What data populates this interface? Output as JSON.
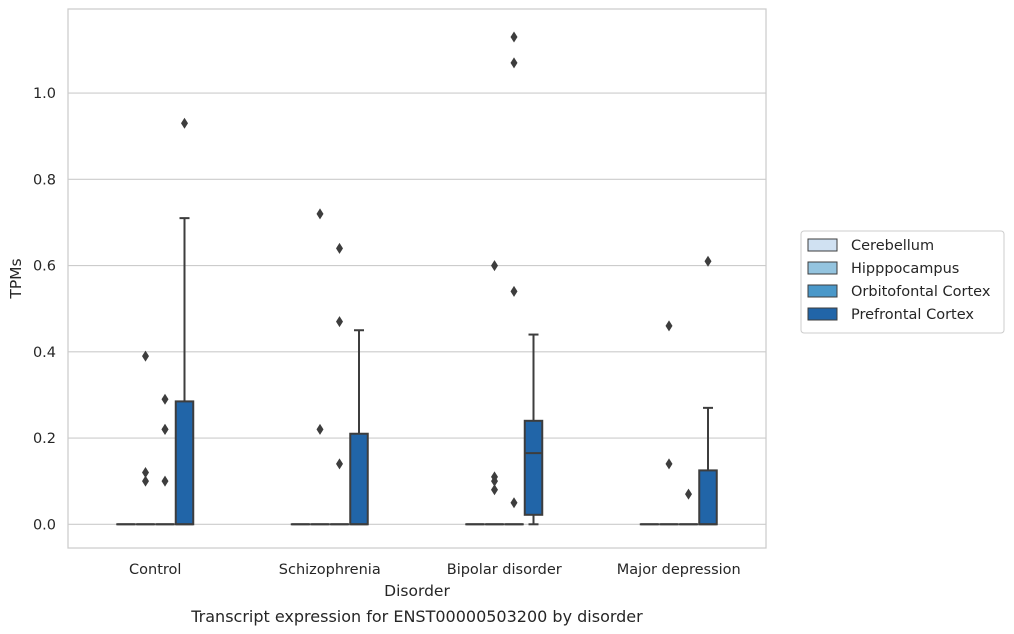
{
  "caption": "Transcript expression for ENST00000503200 by disorder",
  "chart_data": {
    "type": "box",
    "xlabel": "Disorder",
    "ylabel": "TPMs",
    "categories": [
      "Control",
      "Schizophrenia",
      "Bipolar disorder",
      "Major depression"
    ],
    "ylim": [
      -0.055,
      1.195
    ],
    "yticks": [
      0.0,
      0.2,
      0.4,
      0.6,
      0.8,
      1.0
    ],
    "ytick_labels": [
      "0.0",
      "0.2",
      "0.4",
      "0.6",
      "0.8",
      "1.0"
    ],
    "grid": "horizontal",
    "legend_position": "center-right",
    "series": [
      {
        "name": "Cerebellum",
        "color": "#d0e1f2",
        "boxes": [
          {
            "q1": 0,
            "median": 0,
            "q3": 0,
            "whisker_low": 0,
            "whisker_high": 0,
            "outliers": []
          },
          {
            "q1": 0,
            "median": 0,
            "q3": 0,
            "whisker_low": 0,
            "whisker_high": 0,
            "outliers": []
          },
          {
            "q1": 0,
            "median": 0,
            "q3": 0,
            "whisker_low": 0,
            "whisker_high": 0,
            "outliers": []
          },
          {
            "q1": 0,
            "median": 0,
            "q3": 0,
            "whisker_low": 0,
            "whisker_high": 0,
            "outliers": []
          }
        ]
      },
      {
        "name": "Hipppocampus",
        "color": "#94c4df",
        "boxes": [
          {
            "q1": 0,
            "median": 0,
            "q3": 0,
            "whisker_low": 0,
            "whisker_high": 0,
            "outliers": [
              0.1,
              0.12,
              0.39
            ]
          },
          {
            "q1": 0,
            "median": 0,
            "q3": 0,
            "whisker_low": 0,
            "whisker_high": 0,
            "outliers": [
              0.22,
              0.72
            ]
          },
          {
            "q1": 0,
            "median": 0,
            "q3": 0,
            "whisker_low": 0,
            "whisker_high": 0,
            "outliers": [
              0.08,
              0.1,
              0.11,
              0.6
            ]
          },
          {
            "q1": 0,
            "median": 0,
            "q3": 0,
            "whisker_low": 0,
            "whisker_high": 0,
            "outliers": [
              0.14,
              0.46
            ]
          }
        ]
      },
      {
        "name": "Orbitofontal Cortex",
        "color": "#4a98c9",
        "boxes": [
          {
            "q1": 0,
            "median": 0,
            "q3": 0,
            "whisker_low": 0,
            "whisker_high": 0,
            "outliers": [
              0.1,
              0.22,
              0.22,
              0.29
            ]
          },
          {
            "q1": 0,
            "median": 0,
            "q3": 0,
            "whisker_low": 0,
            "whisker_high": 0,
            "outliers": [
              0.14,
              0.47,
              0.64
            ]
          },
          {
            "q1": 0,
            "median": 0,
            "q3": 0,
            "whisker_low": 0,
            "whisker_high": 0,
            "outliers": [
              0.05,
              0.54,
              1.07,
              1.13
            ]
          },
          {
            "q1": 0,
            "median": 0,
            "q3": 0,
            "whisker_low": 0,
            "whisker_high": 0,
            "outliers": [
              0.07
            ]
          }
        ]
      },
      {
        "name": "Prefrontal Cortex",
        "color": "#2165a8",
        "boxes": [
          {
            "q1": 0,
            "median": 0,
            "q3": 0.285,
            "whisker_low": 0,
            "whisker_high": 0.71,
            "outliers": [
              0.93
            ]
          },
          {
            "q1": 0,
            "median": 0,
            "q3": 0.21,
            "whisker_low": 0,
            "whisker_high": 0.45,
            "outliers": []
          },
          {
            "q1": 0.022,
            "median": 0.165,
            "q3": 0.24,
            "whisker_low": 0,
            "whisker_high": 0.44,
            "outliers": []
          },
          {
            "q1": 0,
            "median": 0,
            "q3": 0.125,
            "whisker_low": 0,
            "whisker_high": 0.27,
            "outliers": [
              0.61
            ]
          }
        ]
      }
    ]
  }
}
